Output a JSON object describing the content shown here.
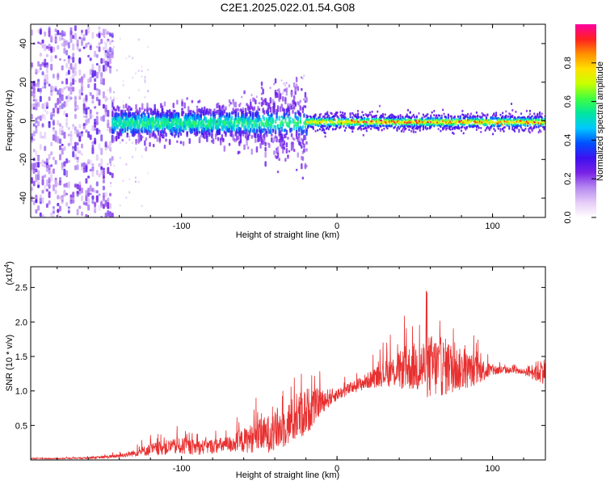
{
  "title": "C2E1.2025.022.01.54.G08",
  "chart_data": [
    {
      "type": "heatmap",
      "xlabel": "Height of straight line (km)",
      "ylabel": "Frequency (Hz)",
      "xlim": [
        -197,
        134
      ],
      "ylim": [
        -50,
        50
      ],
      "xticks": [
        -100,
        0,
        100
      ],
      "yticks": [
        -40,
        -20,
        0,
        20,
        40
      ],
      "colorbar": {
        "label": "Normalized spectral amplitude",
        "range": [
          0,
          1
        ],
        "ticks": [
          "0.0",
          "0.2",
          "0.4",
          "0.6",
          "0.8"
        ],
        "colormap": [
          "#ffffff",
          "#e6cdf7",
          "#b68af0",
          "#7a22e6",
          "#3d10f0",
          "#0050ff",
          "#00c8ff",
          "#00e6a0",
          "#40ff40",
          "#c8ff00",
          "#ffe000",
          "#ff9000",
          "#ff2020",
          "#ff00a0"
        ]
      },
      "regions": [
        {
          "x_from": -197,
          "x_to": -145,
          "freq_spread": 50,
          "amplitude": 0.2,
          "description_level": "scattered"
        },
        {
          "x_from": -145,
          "x_to": -20,
          "freq_spread": 10,
          "amplitude": 0.35
        },
        {
          "x_from": -20,
          "x_to": 134,
          "freq_spread": 3,
          "amplitude": 0.6,
          "peak_amplitude": 0.95
        }
      ]
    },
    {
      "type": "line",
      "xlabel": "Height of straight line (km)",
      "ylabel": "SNR (10 * v/v)",
      "y_multiplier": "(x10^4)",
      "xlim": [
        -197,
        134
      ],
      "ylim": [
        0,
        2.8
      ],
      "xticks": [
        -100,
        0,
        100
      ],
      "yticks": [
        "0.5",
        "1.0",
        "1.5",
        "2.0",
        "2.5"
      ],
      "series": [
        {
          "color": "#e83030",
          "x": [
            -197,
            -180,
            -160,
            -150,
            -140,
            -130,
            -120,
            -110,
            -100,
            -90,
            -80,
            -70,
            -60,
            -50,
            -40,
            -30,
            -20,
            -10,
            0,
            10,
            20,
            30,
            40,
            50,
            60,
            70,
            80,
            90,
            100,
            110,
            120,
            130,
            134
          ],
          "mean": [
            0.02,
            0.02,
            0.03,
            0.04,
            0.06,
            0.1,
            0.15,
            0.18,
            0.2,
            0.18,
            0.2,
            0.22,
            0.28,
            0.35,
            0.4,
            0.55,
            0.7,
            0.85,
            0.95,
            1.05,
            1.15,
            1.25,
            1.3,
            1.35,
            1.35,
            1.35,
            1.3,
            1.3,
            1.3,
            1.3,
            1.28,
            1.28,
            1.3
          ],
          "spread": [
            0.01,
            0.01,
            0.02,
            0.03,
            0.05,
            0.08,
            0.15,
            0.18,
            0.2,
            0.18,
            0.18,
            0.2,
            0.3,
            0.4,
            0.5,
            0.55,
            0.6,
            0.3,
            0.15,
            0.15,
            0.2,
            0.3,
            0.45,
            0.6,
            0.8,
            0.7,
            0.5,
            0.35,
            0.15,
            0.08,
            0.06,
            0.3,
            0.3
          ]
        }
      ]
    }
  ]
}
